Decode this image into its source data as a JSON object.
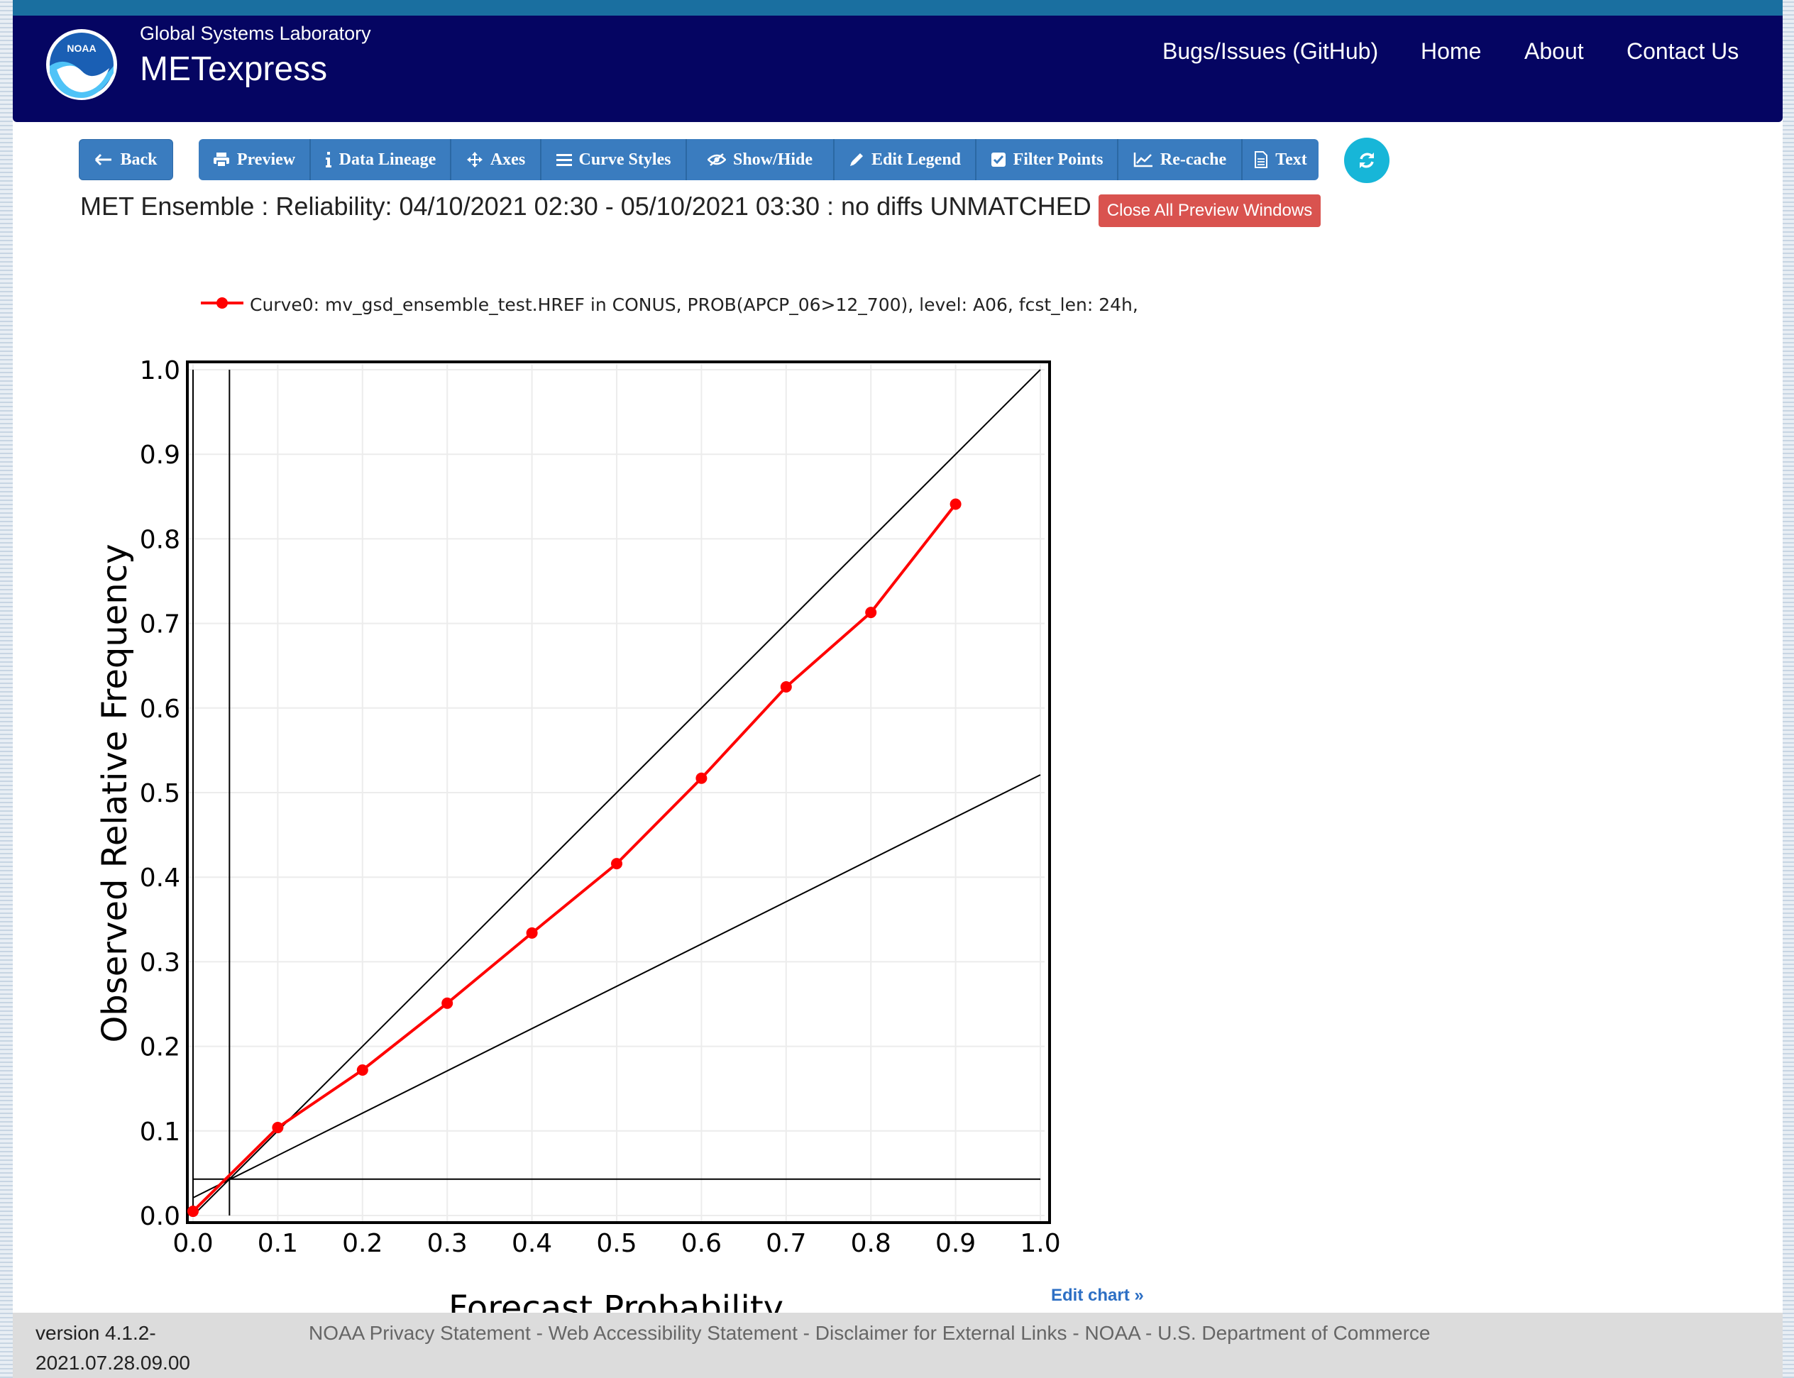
{
  "header": {
    "subtitle": "Global Systems Laboratory",
    "title": "METexpress",
    "logo_text": "NOAA",
    "nav": [
      "Bugs/Issues (GitHub)",
      "Home",
      "About",
      "Contact Us"
    ]
  },
  "toolbar": {
    "back": "Back",
    "buttons": [
      "Preview",
      "Data Lineage",
      "Axes",
      "Curve Styles",
      "Show/Hide",
      "Edit Legend",
      "Filter Points",
      "Re-cache",
      "Text"
    ]
  },
  "page": {
    "title": "MET Ensemble : Reliability: 04/10/2021 02:30 - 05/10/2021 03:30 : no diffs UNMATCHED",
    "close_button": "Close All Preview Windows",
    "edit_chart": "Edit chart »"
  },
  "chart_data": {
    "type": "line",
    "legend": [
      "Curve0: mv_gsd_ensemble_test.HREF in CONUS, PROB(APCP_06>12_700), level: A06, fcst_len: 24h,"
    ],
    "xlabel": "Forecast Probability",
    "ylabel": "Observed Relative Frequency",
    "xlim": [
      0,
      1
    ],
    "ylim": [
      0,
      1
    ],
    "x_ticks": [
      "0.0",
      "0.1",
      "0.2",
      "0.3",
      "0.4",
      "0.5",
      "0.6",
      "0.7",
      "0.8",
      "0.9",
      "1.0"
    ],
    "y_ticks": [
      "0.0",
      "0.1",
      "0.2",
      "0.3",
      "0.4",
      "0.5",
      "0.6",
      "0.7",
      "0.8",
      "0.9",
      "1.0"
    ],
    "grid": true,
    "series": [
      {
        "name": "Curve0",
        "color": "#ff0000",
        "x": [
          0.0,
          0.1,
          0.2,
          0.3,
          0.4,
          0.5,
          0.6,
          0.7,
          0.8,
          0.9
        ],
        "y": [
          0.005,
          0.104,
          0.172,
          0.251,
          0.334,
          0.416,
          0.517,
          0.625,
          0.713,
          0.841
        ]
      }
    ],
    "reference_lines": {
      "perfect_reliability": [
        [
          0,
          0
        ],
        [
          1,
          1
        ]
      ],
      "no_skill": [
        [
          0,
          0.021
        ],
        [
          1,
          0.521
        ]
      ],
      "climatology_x": 0.043,
      "climatology_y": 0.043,
      "sample_x": 0.0
    }
  },
  "footer": {
    "version": "version 4.1.2-\n2021.07.28.09.00",
    "links": [
      "NOAA Privacy Statement",
      "Web Accessibility Statement",
      "Disclaimer for External Links",
      "NOAA",
      "U.S. Department of Commerce"
    ]
  },
  "colors": {
    "navbar": "#050562",
    "button": "#3a7cbf",
    "danger": "#d9534f",
    "refresh": "#17b6d8",
    "series": "#ff0000"
  }
}
